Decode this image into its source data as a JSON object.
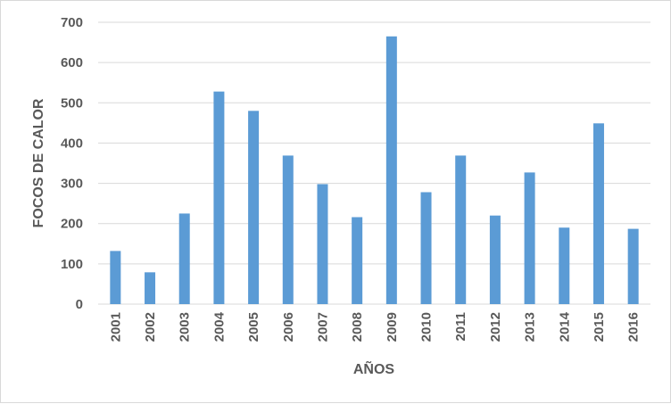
{
  "chart_data": {
    "type": "bar",
    "title": "",
    "xlabel": "AÑOS",
    "ylabel": "FOCOS DE CALOR",
    "categories": [
      "2001",
      "2002",
      "2003",
      "2004",
      "2005",
      "2006",
      "2007",
      "2008",
      "2009",
      "2010",
      "2011",
      "2012",
      "2013",
      "2014",
      "2015",
      "2016"
    ],
    "values": [
      132,
      79,
      225,
      528,
      480,
      369,
      298,
      216,
      665,
      278,
      369,
      220,
      327,
      190,
      449,
      187
    ],
    "ylim": [
      0,
      700
    ],
    "yticks": [
      "0",
      "100",
      "200",
      "300",
      "400",
      "500",
      "600",
      "700"
    ],
    "grid": true,
    "legend": "none",
    "bar_color": "#5b9bd5",
    "grid_color": "#d9d9d9",
    "text_color": "#595959"
  }
}
